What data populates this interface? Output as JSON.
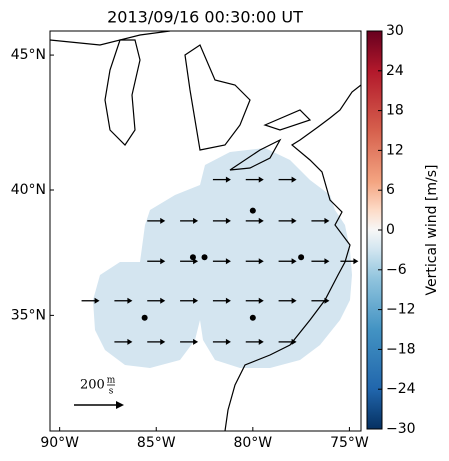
{
  "chart_data": {
    "type": "vector_map",
    "title": "2013/09/16 00:30:00 UT",
    "xlim": [
      -90.5,
      -74.4
    ],
    "ylim": [
      30.1,
      45.85
    ],
    "xticks": [
      {
        "value": -90,
        "label": "90°W"
      },
      {
        "value": -85,
        "label": "85°W"
      },
      {
        "value": -80,
        "label": "80°W"
      },
      {
        "value": -75,
        "label": "75°W"
      }
    ],
    "yticks": [
      {
        "value": 35,
        "label": "35°N"
      },
      {
        "value": 40,
        "label": "40°N"
      },
      {
        "value": 45,
        "label": "45°N"
      }
    ],
    "vectors": {
      "color": "#000000",
      "lon": [
        -81.6,
        -79.9,
        -78.2,
        -85.0,
        -83.3,
        -81.6,
        -79.9,
        -78.2,
        -76.5,
        -85.0,
        -83.3,
        -81.6,
        -79.9,
        -78.2,
        -76.5,
        -75.0,
        -88.4,
        -86.7,
        -85.0,
        -83.3,
        -81.6,
        -79.9,
        -78.2,
        -76.5,
        -86.7,
        -85.0,
        -83.3,
        -81.6,
        -79.9,
        -78.2
      ],
      "lat": [
        40.4,
        40.4,
        40.4,
        38.8,
        38.8,
        38.8,
        38.8,
        38.8,
        38.8,
        37.2,
        37.2,
        37.2,
        37.2,
        37.2,
        37.2,
        37.2,
        35.6,
        35.6,
        35.6,
        35.6,
        35.6,
        35.6,
        35.6,
        35.6,
        33.9,
        33.9,
        33.9,
        33.9,
        33.9,
        33.9
      ]
    },
    "sites": {
      "lon": [
        -83.1,
        -82.5,
        -80.0,
        -77.5,
        -85.6,
        -80.0
      ],
      "lat": [
        37.36,
        37.36,
        39.2,
        37.36,
        34.9,
        34.9
      ]
    },
    "scale_arrow": {
      "value": "200",
      "numerator": "m",
      "denominator": "s"
    },
    "colorbar": {
      "label": "Vertical wind [m/s]",
      "lim": [
        -30,
        30
      ],
      "colormap": "RdBu_r",
      "ticks": [
        {
          "value": -30,
          "label": "−30"
        },
        {
          "value": -24,
          "label": "−24"
        },
        {
          "value": -18,
          "label": "−18"
        },
        {
          "value": -12,
          "label": "−12"
        },
        {
          "value": -6,
          "label": "−6"
        },
        0,
        6,
        12,
        18,
        24,
        30
      ]
    }
  }
}
